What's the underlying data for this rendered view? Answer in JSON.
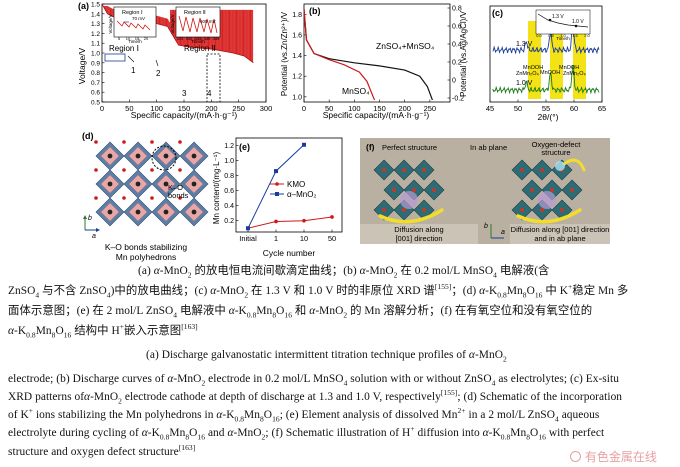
{
  "panels": {
    "a": {
      "letter": "(a)",
      "ylabel": "Voltage/V",
      "xlabel": "Specific capacity/(mA·h·g⁻¹)",
      "x_ticks": [
        "0",
        "50",
        "100",
        "150",
        "200",
        "250",
        "300"
      ],
      "y_ticks": [
        "0.5",
        "0.6",
        "0.7",
        "0.8",
        "0.9",
        "1.0",
        "1.1",
        "1.2",
        "1.3",
        "1.4",
        "1.5"
      ],
      "region1": "Region Ⅰ",
      "region2": "Region Ⅱ",
      "marks": [
        "1",
        "2",
        "3",
        "4"
      ],
      "inset1_title": "Region Ⅰ",
      "inset1_ylabel": "Voltage/V",
      "inset1_xlabel": "Time/h",
      "inset1_xticks": [
        "5",
        "10",
        "15",
        "20"
      ],
      "inset1_ann": "70 mV",
      "inset2_title": "Region Ⅱ",
      "inset2_ylabel": "Voltage/V",
      "inset2_xlabel": "Time/h",
      "inset2_xticks": [
        "325",
        "330",
        "335",
        "340",
        "345"
      ],
      "inset2_ann": "600 mV"
    },
    "b": {
      "letter": "(b)",
      "ylabel_left": "Potential (vs.Zn/Zn²⁺)/V",
      "ylabel_right": "Potential (vs.Ag/AgCl)/V",
      "xlabel": "Specific capacity/(mA·h·g⁻¹)",
      "x_ticks": [
        "0",
        "50",
        "100",
        "150",
        "200",
        "250"
      ],
      "yl_ticks": [
        "1.0",
        "1.2",
        "1.4",
        "1.6",
        "1.8"
      ],
      "yr_ticks": [
        "-0.2",
        "0",
        "0.2",
        "0.4",
        "0.6",
        "0.8"
      ],
      "series1": "ZnSO₄+MnSO₄",
      "series2": "MnSO₄"
    },
    "c": {
      "letter": "(c)",
      "xlabel": "2θ/(°)",
      "x_ticks": [
        "45",
        "50",
        "55",
        "60",
        "65"
      ],
      "labels_top": [
        "MnOOH",
        "ZnMn₂O₄",
        "MnOOH",
        "ZnMn₂O₄"
      ],
      "labels_bot": [
        "ZnMn₂O₄",
        "MnOOH",
        "ZnMn₂O₄"
      ],
      "v13": "1.3 V",
      "v10": "1.0 V",
      "inset_v13": "1.3 V",
      "inset_v10": "1.0 V",
      "inset_xlabel": "Time/h",
      "inset_xticks": [
        "0.0",
        "0.5",
        "1.0",
        "1.5",
        "2.0"
      ]
    },
    "d": {
      "letter": "(d)",
      "bond_label_1": "K–O",
      "bond_label_2": "bonds",
      "axis_a": "a",
      "axis_b": "b",
      "caption_1": "K–O bonds stabilizing",
      "caption_2": "Mn polyhedrons"
    },
    "e": {
      "letter": "(e)",
      "ylabel": "Mn content/(mg·L⁻¹)",
      "xlabel": "Cycle number",
      "x_ticks": [
        "Initial",
        "1",
        "10",
        "50"
      ],
      "y_ticks": [
        "0.2",
        "0.4",
        "0.6",
        "0.8",
        "1.0",
        "1.2"
      ],
      "legend": [
        "KMO",
        "α–MnO₂"
      ]
    },
    "f": {
      "letter": "(f)",
      "perfect": "Perfect structure",
      "ab_plane": "In ab plane",
      "oxy_defect_1": "Oxygen-defect",
      "oxy_defect_2": "structure",
      "diff1_1": "Diffusion along",
      "diff1_2": "[001] direction",
      "diff2_1": "Diffusion along [001] direction",
      "diff2_2": "and in ab plane",
      "axis_a": "a",
      "axis_b": "b"
    }
  },
  "chart_data": [
    {
      "type": "line",
      "title": "(a)",
      "xlabel": "Specific capacity/(mA·h·g⁻¹)",
      "ylabel": "Voltage/V",
      "xlim": [
        0,
        300
      ],
      "ylim": [
        0.5,
        1.5
      ],
      "series": [
        {
          "x": [
            0,
            10,
            20,
            40,
            60,
            80,
            100,
            120,
            140,
            160,
            180,
            200,
            220,
            240,
            260,
            277
          ],
          "values": [
            1.5,
            1.4,
            1.37,
            1.36,
            1.35,
            1.33,
            1.3,
            1.27,
            1.08,
            1.06,
            1.05,
            1.04,
            1.02,
            1.0,
            0.97,
            0.9
          ]
        }
      ]
    },
    {
      "type": "line",
      "title": "(b)",
      "xlabel": "Specific capacity/(mA·h·g⁻¹)",
      "ylabel": "Potential (vs.Zn/Zn²⁺)/V",
      "xlim": [
        0,
        290
      ],
      "ylim": [
        0.95,
        1.9
      ],
      "series": [
        {
          "name": "ZnSO₄+MnSO₄",
          "x": [
            0,
            5,
            20,
            50,
            100,
            150,
            200,
            230,
            245,
            255
          ],
          "values": [
            1.85,
            1.55,
            1.42,
            1.37,
            1.33,
            1.3,
            1.26,
            1.2,
            1.1,
            0.97
          ]
        },
        {
          "name": "MnSO₄",
          "x": [
            0,
            5,
            20,
            50,
            80,
            110,
            125,
            140
          ],
          "values": [
            1.85,
            1.55,
            1.42,
            1.36,
            1.31,
            1.24,
            1.15,
            0.97
          ]
        }
      ]
    },
    {
      "type": "line",
      "title": "(c)",
      "xlabel": "2θ/(°)",
      "xlim": [
        45,
        65
      ],
      "series": [
        {
          "name": "1.3 V",
          "x": [
            45,
            50,
            51.5,
            53,
            55.8,
            57,
            59.8,
            62,
            65
          ],
          "values": [
            0.35,
            0.36,
            0.43,
            0.36,
            0.55,
            0.37,
            0.72,
            0.36,
            0.35
          ]
        },
        {
          "name": "1.0 V",
          "x": [
            45,
            50,
            51.5,
            53,
            55.8,
            57,
            59.8,
            62,
            65
          ],
          "values": [
            0.1,
            0.11,
            0.18,
            0.11,
            0.26,
            0.12,
            0.45,
            0.11,
            0.1
          ]
        }
      ]
    },
    {
      "type": "line",
      "title": "(e)",
      "xlabel": "Cycle number",
      "ylabel": "Mn content/(mg·L⁻¹)",
      "categories": [
        "Initial",
        "1",
        "10",
        "50"
      ],
      "ylim": [
        0.05,
        1.3
      ],
      "series": [
        {
          "name": "KMO",
          "values": [
            0.1,
            0.19,
            0.2,
            0.25
          ]
        },
        {
          "name": "α–MnO₂",
          "values": [
            0.1,
            0.86,
            1.21,
            null
          ]
        }
      ]
    }
  ],
  "caption": {
    "cn1_a": "(a)",
    "cn1_b": "α",
    "cn1_c": "-MnO",
    "cn1_d": "的放电恒电流间歇滴定曲线；(b)",
    "cn1_e": "α",
    "cn1_f": "-MnO",
    "cn1_g": "在 0.2 mol/L MnSO",
    "cn1_h": "电解液(含",
    "cn2_a": "ZnSO",
    "cn2_b": "与不含 ZnSO",
    "cn2_c": ")中的放电曲线；(c)",
    "cn2_d": "α",
    "cn2_e": "-MnO",
    "cn2_f": "在 1.3 V 和 1.0 V 时的非原位 XRD 谱",
    "cn2_ref": "[155]",
    "cn2_g": "；(d)",
    "cn2_h": "α",
    "cn2_i": "-K",
    "cn2_j": "Mn",
    "cn2_k": "O",
    "cn2_l": "中 K",
    "cn2_m": "稳定 Mn 多",
    "cn3_a": "面体示意图；(e) 在 2 mol/L ZnSO",
    "cn3_b": "电解液中",
    "cn3_c": "α",
    "cn3_d": "-K",
    "cn3_e": "Mn",
    "cn3_f": "O",
    "cn3_g": "和",
    "cn3_h": "α",
    "cn3_i": "-MnO",
    "cn3_j": "的 Mn 溶解分析；(f) 在有氧空位和没有氧空位的",
    "cn4_a": "α",
    "cn4_b": "-K",
    "cn4_c": "Mn",
    "cn4_d": "O",
    "cn4_e": "结构中 H",
    "cn4_f": "嵌入示意图",
    "cn4_ref": "[163]",
    "en1_a": "(a) Discharge galvanostatic intermittent titration technique profiles of",
    "en1_b": "α",
    "en1_c": "-MnO",
    "en2_a": "electrode; (b) Discharge curves of",
    "en2_b": "α",
    "en2_c": "-MnO",
    "en2_d": "electrode in 0.2 mol/L MnSO",
    "en2_e": "solution with or without ZnSO",
    "en2_f": "as electrolytes; (c) Ex-situ",
    "en3_a": "XRD patterns of",
    "en3_b": "α",
    "en3_c": "-MnO",
    "en3_d": "electrode cathode at depth of discharge at 1.3 and 1.0 V, respectively",
    "en3_ref": "[155]",
    "en3_e": "; (d) Schematic of the incorporation",
    "en4_a": "of K",
    "en4_b": "ions stabilizing the Mn polyhedrons in",
    "en4_c": "α",
    "en4_d": "-K",
    "en4_e": "Mn",
    "en4_f": "O",
    "en4_g": "; (e) Element analysis of dissolved Mn",
    "en4_h": "in a 2 mol/L ZnSO",
    "en4_i": "aqueous",
    "en5_a": "electrolyte during cycling of",
    "en5_b": "α",
    "en5_c": "-K",
    "en5_d": "Mn",
    "en5_e": "O",
    "en5_f": "and",
    "en5_g": "α",
    "en5_h": "-MnO",
    "en5_i": "; (f) Schematic illustration of H",
    "en5_j": "diffusion into",
    "en5_k": "α",
    "en5_l": "-K",
    "en5_m": "Mn",
    "en5_n": "O",
    "en5_o": "with perfect",
    "en6_a": "structure and oxygen defect structure",
    "en6_ref": "[163]",
    "sub2": "2",
    "sub4": "4",
    "sub08": "0.8",
    "sub8": "8",
    "sub16": "16",
    "supplus": "+",
    "sup2plus": "2+"
  },
  "watermark": "有色金属在线"
}
